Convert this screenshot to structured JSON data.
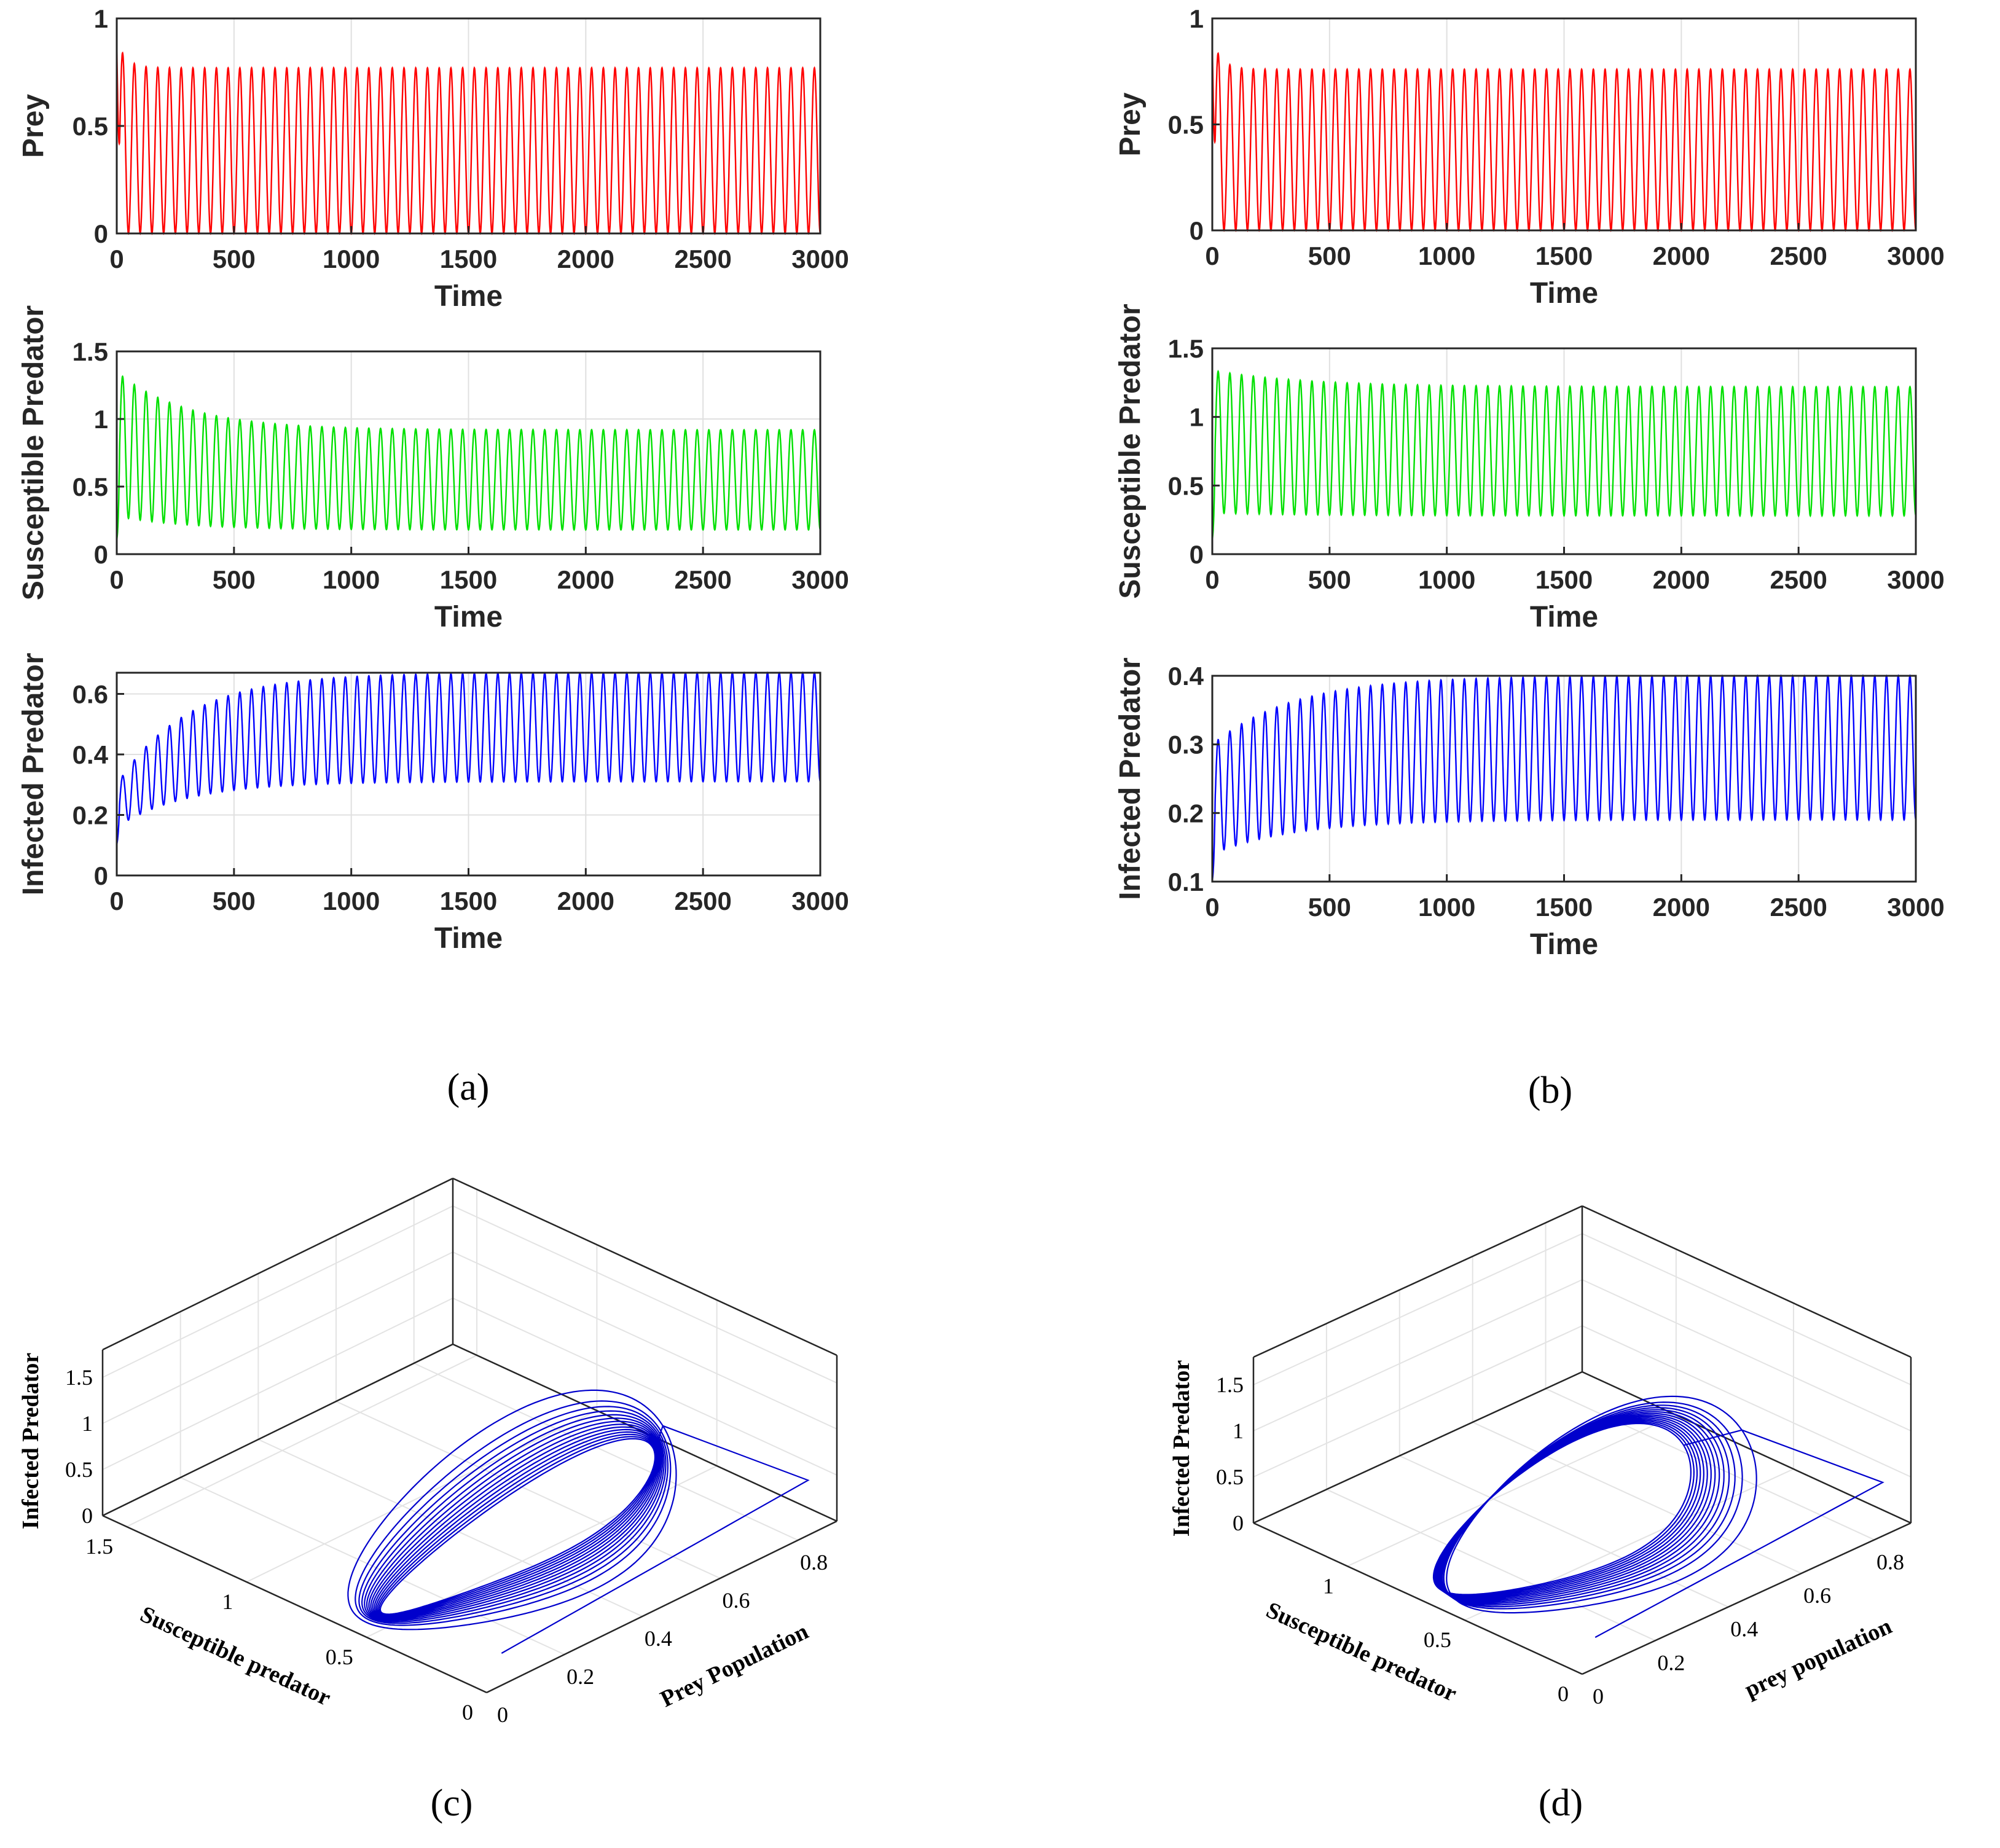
{
  "chart_data": [
    {
      "id": "a",
      "panel_label": "(a)",
      "type": "line",
      "subplots": [
        {
          "series_name": "Prey",
          "ylabel": "Prey",
          "xlabel": "Time",
          "xlim": [
            0,
            3000
          ],
          "ylim": [
            0,
            1
          ],
          "xticks": [
            0,
            500,
            1000,
            1500,
            2000,
            2500,
            3000
          ],
          "yticks": [
            0,
            0.5,
            1
          ],
          "color": "#ff0000",
          "oscillation": {
            "initial": 0.9,
            "peak_start": 0.9,
            "peak_end": 0.77,
            "trough_start": 0.0,
            "trough_end": 0.0,
            "period": 50,
            "relax_time": 40
          }
        },
        {
          "series_name": "Susceptible Predator",
          "ylabel": "Susceptible Predator",
          "xlabel": "Time",
          "xlim": [
            0,
            3000
          ],
          "ylim": [
            0,
            1.5
          ],
          "xticks": [
            0,
            500,
            1000,
            1500,
            2000,
            2500,
            3000
          ],
          "yticks": [
            0,
            0.5,
            1,
            1.5
          ],
          "color": "#00e000",
          "oscillation": {
            "initial": 0.1,
            "peak_start": 1.35,
            "peak_end": 0.92,
            "trough_start": 0.28,
            "trough_end": 0.18,
            "period": 50,
            "relax_time": 300
          }
        },
        {
          "series_name": "Infected Predator",
          "ylabel": "Infected Predator",
          "xlabel": "Time",
          "xlim": [
            0,
            3000
          ],
          "ylim": [
            0,
            0.67
          ],
          "xticks": [
            0,
            500,
            1000,
            1500,
            2000,
            2500,
            3000
          ],
          "yticks": [
            0,
            0.2,
            0.4,
            0.6
          ],
          "color": "#0000ff",
          "oscillation": {
            "initial": 0.1,
            "peak_start": 0.3,
            "peak_end": 0.67,
            "trough_start": 0.16,
            "trough_end": 0.31,
            "period": 50,
            "relax_time": 300
          }
        }
      ]
    },
    {
      "id": "b",
      "panel_label": "(b)",
      "type": "line",
      "subplots": [
        {
          "series_name": "Prey",
          "ylabel": "Prey",
          "xlabel": "Time",
          "xlim": [
            0,
            3000
          ],
          "ylim": [
            0,
            1
          ],
          "xticks": [
            0,
            500,
            1000,
            1500,
            2000,
            2500,
            3000
          ],
          "yticks": [
            0,
            0.5,
            1
          ],
          "color": "#ff0000",
          "oscillation": {
            "initial": 0.9,
            "peak_start": 0.9,
            "peak_end": 0.76,
            "trough_start": 0.0,
            "trough_end": 0.0,
            "period": 50,
            "relax_time": 40
          }
        },
        {
          "series_name": "Susceptible Predator",
          "ylabel": "Susceptible Predator",
          "xlabel": "Time",
          "xlim": [
            0,
            3000
          ],
          "ylim": [
            0,
            1.5
          ],
          "xticks": [
            0,
            500,
            1000,
            1500,
            2000,
            2500,
            3000
          ],
          "yticks": [
            0,
            0.5,
            1,
            1.5
          ],
          "color": "#00e000",
          "oscillation": {
            "initial": 0.1,
            "peak_start": 1.34,
            "peak_end": 1.22,
            "trough_start": 0.3,
            "trough_end": 0.28,
            "period": 50,
            "relax_time": 400
          }
        },
        {
          "series_name": "Infected Predator",
          "ylabel": "Infected Predator",
          "xlabel": "Time",
          "xlim": [
            0,
            3000
          ],
          "ylim": [
            0.1,
            0.4
          ],
          "xticks": [
            0,
            500,
            1000,
            1500,
            2000,
            2500,
            3000
          ],
          "yticks": [
            0.1,
            0.2,
            0.3,
            0.4
          ],
          "color": "#0000ff",
          "oscillation": {
            "initial": 0.1,
            "peak_start": 0.3,
            "peak_end": 0.4,
            "trough_start": 0.14,
            "trough_end": 0.19,
            "period": 50,
            "relax_time": 350
          }
        }
      ]
    },
    {
      "id": "c",
      "panel_label": "(c)",
      "type": "line3d",
      "xlabel": "Prey Population",
      "ylabel": "Susceptible predator",
      "zlabel": "Infected Predator",
      "xticks": [
        0,
        0.2,
        0.4,
        0.6,
        0.8
      ],
      "xlim": [
        0,
        0.9
      ],
      "yticks": [
        0,
        0.5,
        1,
        1.5
      ],
      "ylim": [
        0,
        1.6
      ],
      "zticks": [
        0,
        0.5,
        1,
        1.5
      ],
      "zlim": [
        0,
        1.8
      ],
      "color": "#0000cc",
      "trajectory": {
        "start": [
          0.1,
          0.1,
          0.1
        ],
        "corner": [
          0.9,
          0.12,
          0.3
        ],
        "outer_loop": {
          "x_low": 0.0,
          "x_high": 0.9,
          "s_low": 0.1,
          "s_high": 1.35,
          "i": 0.3
        },
        "inner_loop": {
          "x_low": 0.0,
          "x_high": 0.77,
          "s_low": 0.18,
          "s_high": 0.92,
          "i": 0.67
        },
        "loops": 14
      }
    },
    {
      "id": "d",
      "panel_label": "(d)",
      "type": "line3d",
      "xlabel": "prey population",
      "ylabel": "Susceptible predator",
      "zlabel": "Infected Predator",
      "xticks": [
        0,
        0.2,
        0.4,
        0.6,
        0.8
      ],
      "xlim": [
        0,
        0.9
      ],
      "yticks": [
        0,
        0.5,
        1
      ],
      "ylim": [
        0,
        1.4
      ],
      "zticks": [
        0,
        0.5,
        1,
        1.5
      ],
      "zlim": [
        0,
        1.8
      ],
      "color": "#0000cc",
      "trajectory": {
        "start": [
          0.1,
          0.1,
          0.1
        ],
        "corner": [
          0.9,
          0.12,
          0.3
        ],
        "outer_loop": {
          "x_low": 0.0,
          "x_high": 0.9,
          "s_low": 0.1,
          "s_high": 1.34,
          "i": 0.3
        },
        "inner_loop": {
          "x_low": 0.0,
          "x_high": 0.76,
          "s_low": 0.28,
          "s_high": 1.22,
          "i": 0.4
        },
        "loops": 14
      }
    }
  ]
}
